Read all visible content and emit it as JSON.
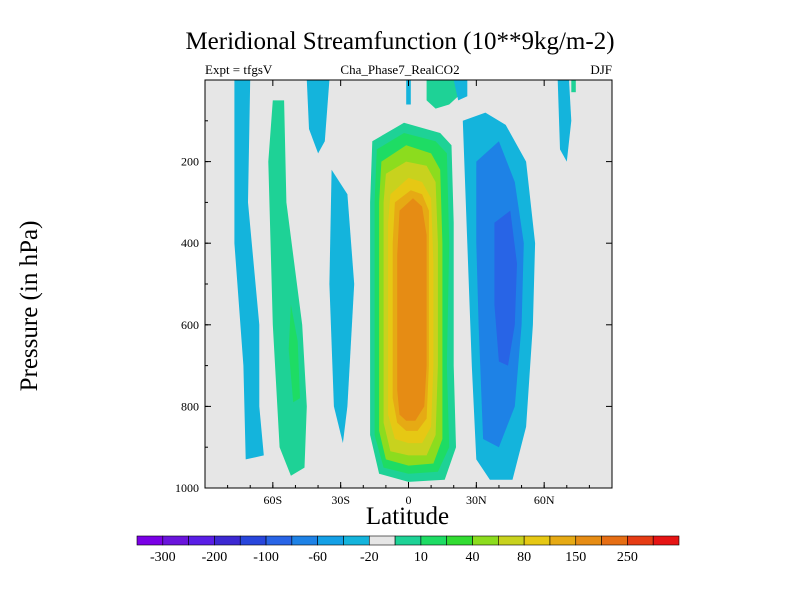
{
  "chart_data": {
    "type": "heatmap",
    "title": "Meridional Streamfunction (10**9kg/m-2)",
    "subtitle_left": "Expt = tfgsV",
    "subtitle_center": "Cha_Phase7_RealCO2",
    "subtitle_right": "DJF",
    "xlabel": "Latitude",
    "ylabel": "Pressure (in hPa)",
    "xlim": [
      -90,
      90
    ],
    "ylim": [
      1000,
      0
    ],
    "x_ticks": [
      {
        "value": -60,
        "label": "60S"
      },
      {
        "value": -30,
        "label": "30S"
      },
      {
        "value": 0,
        "label": "0"
      },
      {
        "value": 30,
        "label": "30N"
      },
      {
        "value": 60,
        "label": "60N"
      }
    ],
    "y_ticks": [
      {
        "value": 200,
        "label": "200"
      },
      {
        "value": 400,
        "label": "400"
      },
      {
        "value": 600,
        "label": "600"
      },
      {
        "value": 800,
        "label": "800"
      },
      {
        "value": 1000,
        "label": "1000"
      }
    ],
    "colorbar": {
      "colors": [
        "#7a00e6",
        "#6a14dc",
        "#5a1ee6",
        "#3c28d2",
        "#2846dc",
        "#2864e6",
        "#1e82e6",
        "#14a0e6",
        "#14b4dc",
        "#e6e6e6",
        "#1ed296",
        "#1edc64",
        "#32dc32",
        "#8cdc1e",
        "#c8d21e",
        "#e6c814",
        "#e6aa14",
        "#e68c14",
        "#e66e14",
        "#e63c14",
        "#e61414"
      ],
      "labels": [
        {
          "after": 0,
          "text": "-300"
        },
        {
          "after": 2,
          "text": "-200"
        },
        {
          "after": 4,
          "text": "-100"
        },
        {
          "after": 6,
          "text": "-60"
        },
        {
          "after": 8,
          "text": "-20"
        },
        {
          "after": 10,
          "text": "10"
        },
        {
          "after": 12,
          "text": "40"
        },
        {
          "after": 14,
          "text": "80"
        },
        {
          "after": 16,
          "text": "150"
        },
        {
          "after": 18,
          "text": "250"
        }
      ]
    },
    "regions": [
      {
        "name": "sh-polar-negative",
        "color": "#14b4dc",
        "poly": [
          [
            -77,
            0
          ],
          [
            -70,
            0
          ],
          [
            -71,
            300
          ],
          [
            -66,
            600
          ],
          [
            -66,
            800
          ],
          [
            -64,
            920
          ],
          [
            -72,
            930
          ],
          [
            -73,
            700
          ],
          [
            -77,
            400
          ]
        ]
      },
      {
        "name": "sh-midlat-positive",
        "color": "#1ed296",
        "poly": [
          [
            -60,
            50
          ],
          [
            -55,
            50
          ],
          [
            -54,
            300
          ],
          [
            -47,
            600
          ],
          [
            -45,
            800
          ],
          [
            -46,
            950
          ],
          [
            -52,
            970
          ],
          [
            -57,
            900
          ],
          [
            -60,
            600
          ],
          [
            -62,
            200
          ]
        ]
      },
      {
        "name": "sh-midlat-positive-core",
        "color": "#1edc64",
        "poly": [
          [
            -52,
            550
          ],
          [
            -49,
            640
          ],
          [
            -48,
            780
          ],
          [
            -51,
            790
          ],
          [
            -53,
            660
          ]
        ]
      },
      {
        "name": "sh-upper-negative",
        "color": "#14b4dc",
        "poly": [
          [
            -45,
            0
          ],
          [
            -35,
            0
          ],
          [
            -37,
            150
          ],
          [
            -40,
            180
          ],
          [
            -44,
            120
          ]
        ]
      },
      {
        "name": "sh-subtropical-negative",
        "color": "#14b4dc",
        "poly": [
          [
            -34,
            220
          ],
          [
            -27,
            280
          ],
          [
            -24,
            500
          ],
          [
            -27,
            800
          ],
          [
            -29,
            890
          ],
          [
            -33,
            800
          ],
          [
            -35,
            500
          ]
        ]
      },
      {
        "name": "upper-left-ridge-lobe",
        "color": "#14b4dc",
        "poly": [
          [
            -1,
            0
          ],
          [
            1,
            0
          ],
          [
            1,
            60
          ],
          [
            -1,
            60
          ]
        ]
      },
      {
        "name": "hadley-10",
        "color": "#1ed296",
        "poly": [
          [
            -16,
            150
          ],
          [
            -2,
            105
          ],
          [
            14,
            130
          ],
          [
            19,
            160
          ],
          [
            20,
            350
          ],
          [
            20,
            700
          ],
          [
            21,
            900
          ],
          [
            16,
            980
          ],
          [
            0,
            985
          ],
          [
            -13,
            965
          ],
          [
            -17,
            870
          ],
          [
            -17,
            600
          ],
          [
            -17,
            300
          ]
        ]
      },
      {
        "name": "hadley-40",
        "color": "#1edc64",
        "poly": [
          [
            -14,
            170
          ],
          [
            -2,
            130
          ],
          [
            12,
            150
          ],
          [
            17,
            180
          ],
          [
            18,
            400
          ],
          [
            17,
            700
          ],
          [
            18,
            900
          ],
          [
            13,
            960
          ],
          [
            0,
            965
          ],
          [
            -11,
            950
          ],
          [
            -15,
            870
          ],
          [
            -15,
            600
          ],
          [
            -15,
            300
          ]
        ]
      },
      {
        "name": "hadley-60",
        "color": "#8cdc1e",
        "poly": [
          [
            -12,
            200
          ],
          [
            -1,
            160
          ],
          [
            10,
            180
          ],
          [
            14,
            220
          ],
          [
            15,
            400
          ],
          [
            15,
            700
          ],
          [
            15,
            880
          ],
          [
            11,
            940
          ],
          [
            0,
            945
          ],
          [
            -10,
            930
          ],
          [
            -13,
            860
          ],
          [
            -13,
            600
          ],
          [
            -13,
            300
          ]
        ]
      },
      {
        "name": "hadley-80",
        "color": "#c8d21e",
        "poly": [
          [
            -10,
            230
          ],
          [
            -1,
            200
          ],
          [
            8,
            210
          ],
          [
            12,
            250
          ],
          [
            13,
            400
          ],
          [
            13,
            700
          ],
          [
            12,
            870
          ],
          [
            8,
            920
          ],
          [
            0,
            920
          ],
          [
            -8,
            910
          ],
          [
            -11,
            840
          ],
          [
            -11,
            600
          ],
          [
            -11,
            300
          ]
        ]
      },
      {
        "name": "hadley-100",
        "color": "#e6c814",
        "poly": [
          [
            -8,
            280
          ],
          [
            0,
            240
          ],
          [
            6,
            250
          ],
          [
            10,
            290
          ],
          [
            11,
            450
          ],
          [
            11,
            700
          ],
          [
            10,
            850
          ],
          [
            6,
            890
          ],
          [
            0,
            890
          ],
          [
            -6,
            880
          ],
          [
            -9,
            820
          ],
          [
            -9,
            600
          ],
          [
            -9,
            350
          ]
        ]
      },
      {
        "name": "hadley-150",
        "color": "#e6aa14",
        "poly": [
          [
            -6,
            300
          ],
          [
            1,
            270
          ],
          [
            6,
            280
          ],
          [
            9,
            320
          ],
          [
            9,
            500
          ],
          [
            9,
            700
          ],
          [
            8,
            830
          ],
          [
            4,
            860
          ],
          [
            -1,
            860
          ],
          [
            -5,
            840
          ],
          [
            -7,
            780
          ],
          [
            -7,
            600
          ],
          [
            -7,
            400
          ]
        ]
      },
      {
        "name": "hadley-200",
        "color": "#e68c14",
        "poly": [
          [
            -4,
            320
          ],
          [
            2,
            290
          ],
          [
            6,
            310
          ],
          [
            8,
            380
          ],
          [
            8,
            550
          ],
          [
            8,
            700
          ],
          [
            7,
            800
          ],
          [
            3,
            835
          ],
          [
            -1,
            835
          ],
          [
            -4,
            820
          ],
          [
            -5,
            760
          ],
          [
            -5,
            600
          ],
          [
            -5,
            430
          ]
        ]
      },
      {
        "name": "top-center-positive",
        "color": "#1ed296",
        "poly": [
          [
            8,
            0
          ],
          [
            22,
            0
          ],
          [
            22,
            40
          ],
          [
            18,
            60
          ],
          [
            12,
            70
          ],
          [
            8,
            50
          ]
        ]
      },
      {
        "name": "top-center-negative",
        "color": "#14b4dc",
        "poly": [
          [
            20,
            0
          ],
          [
            26,
            0
          ],
          [
            26,
            40
          ],
          [
            22,
            50
          ]
        ]
      },
      {
        "name": "nh-hadley-negative",
        "color": "#14b4dc",
        "poly": [
          [
            24,
            100
          ],
          [
            34,
            80
          ],
          [
            43,
            110
          ],
          [
            52,
            200
          ],
          [
            56,
            400
          ],
          [
            55,
            600
          ],
          [
            52,
            850
          ],
          [
            46,
            980
          ],
          [
            36,
            980
          ],
          [
            30,
            930
          ],
          [
            28,
            700
          ],
          [
            26,
            400
          ]
        ]
      },
      {
        "name": "nh-hadley-negative-20",
        "color": "#1e82e6",
        "poly": [
          [
            30,
            200
          ],
          [
            40,
            150
          ],
          [
            47,
            250
          ],
          [
            51,
            400
          ],
          [
            50,
            600
          ],
          [
            47,
            800
          ],
          [
            40,
            900
          ],
          [
            33,
            880
          ],
          [
            31,
            600
          ],
          [
            30,
            400
          ]
        ]
      },
      {
        "name": "nh-hadley-negative-60",
        "color": "#2864e6",
        "poly": [
          [
            38,
            350
          ],
          [
            45,
            320
          ],
          [
            48,
            450
          ],
          [
            47,
            600
          ],
          [
            44,
            700
          ],
          [
            40,
            690
          ],
          [
            38,
            550
          ]
        ]
      },
      {
        "name": "nh-polar-negative",
        "color": "#14b4dc",
        "poly": [
          [
            66,
            0
          ],
          [
            71,
            0
          ],
          [
            72,
            100
          ],
          [
            70,
            200
          ],
          [
            67,
            170
          ]
        ]
      },
      {
        "name": "nh-upper-positive",
        "color": "#1ed296",
        "poly": [
          [
            72,
            0
          ],
          [
            74,
            0
          ],
          [
            74,
            30
          ],
          [
            72,
            30
          ]
        ]
      }
    ]
  }
}
